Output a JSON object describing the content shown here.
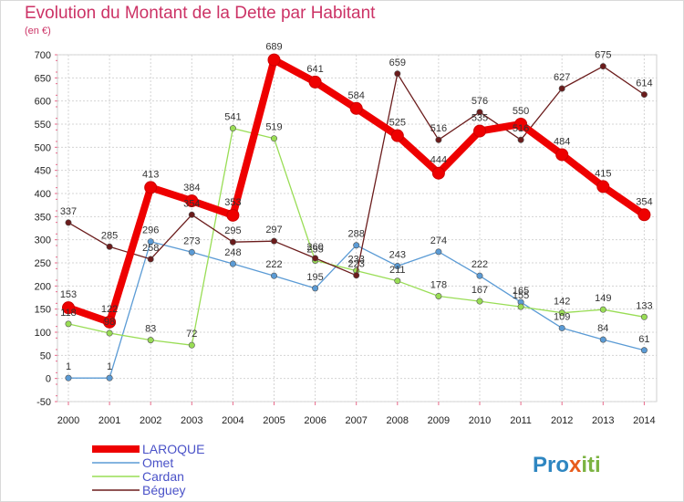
{
  "chart_data": {
    "type": "line",
    "title": "Evolution du Montant de la Dette par Habitant",
    "subtitle": "(en €)",
    "x": [
      2000,
      2001,
      2002,
      2003,
      2004,
      2005,
      2006,
      2007,
      2008,
      2009,
      2010,
      2011,
      2012,
      2013,
      2014
    ],
    "ylim": [
      -50,
      700
    ],
    "yticks": [
      -50,
      0,
      50,
      100,
      150,
      200,
      250,
      300,
      350,
      400,
      450,
      500,
      550,
      600,
      650,
      700
    ],
    "grid": true,
    "legend_position": "bottom-left",
    "series": [
      {
        "name": "LAROQUE",
        "color": "#ee0000",
        "values": [
          153,
          122,
          413,
          384,
          353,
          689,
          641,
          584,
          525,
          444,
          535,
          550,
          484,
          415,
          354
        ]
      },
      {
        "name": "Omet",
        "color": "#5b9bd5",
        "values": [
          1,
          1,
          296,
          273,
          248,
          222,
          195,
          288,
          243,
          274,
          222,
          165,
          109,
          84,
          61
        ]
      },
      {
        "name": "Cardan",
        "color": "#99dd55",
        "values": [
          118,
          98,
          83,
          72,
          541,
          519,
          255,
          233,
          211,
          178,
          167,
          155,
          142,
          149,
          133
        ]
      },
      {
        "name": "Béguey",
        "color": "#6b1c1c",
        "values": [
          337,
          285,
          258,
          354,
          295,
          297,
          260,
          223,
          659,
          516,
          576,
          516,
          627,
          675,
          614
        ]
      }
    ]
  },
  "logo": {
    "text_parts": [
      "Pro",
      "x",
      "iti"
    ],
    "colors": [
      "#2e86c1",
      "#e85c1c",
      "#7cb342"
    ]
  }
}
